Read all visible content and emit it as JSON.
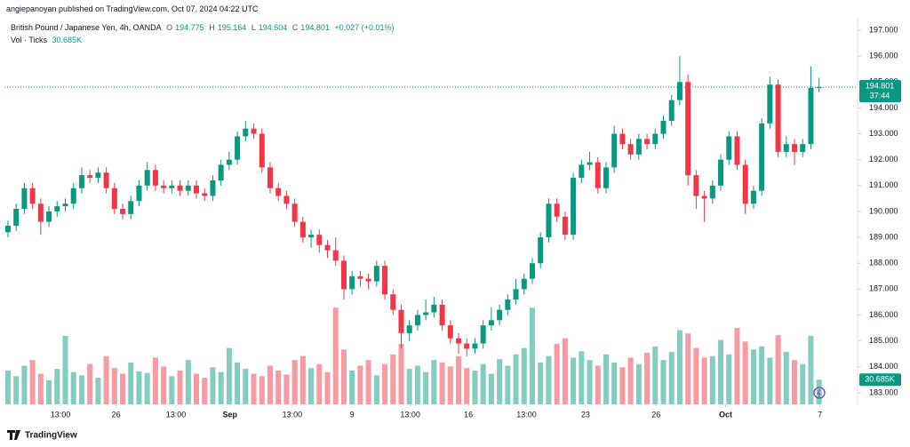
{
  "header": {
    "published": "angiepanoyan published on TradingView.com, Oct 07, 2024 04:22 UTC"
  },
  "chart_data": {
    "type": "candlestick",
    "title": "British Pound / Japanese Yen, 4h, OANDA",
    "ohlc_letters": [
      "O",
      "H",
      "L",
      "C"
    ],
    "change": "+0.027 (+0.01%)",
    "countdown": "37:44",
    "up_color": "#089981",
    "down_color": "#f23645",
    "grid": false,
    "last_price_line": true,
    "open": [
      189.2,
      189.45,
      190.1,
      190.9,
      190.3,
      189.6,
      190.0,
      190.2,
      190.3,
      190.9,
      191.4,
      191.3,
      191.5,
      190.9,
      190.1,
      189.9,
      190.4,
      191.0,
      191.6,
      191.0,
      190.9,
      191.0,
      190.8,
      191.0,
      190.7,
      190.6,
      191.2,
      191.8,
      192.0,
      192.9,
      193.2,
      193.0,
      191.7,
      190.9,
      190.6,
      190.3,
      189.6,
      189.0,
      189.1,
      188.7,
      188.5,
      188.1,
      187.0,
      187.5,
      187.4,
      187.3,
      187.9,
      186.8,
      186.2,
      185.3,
      185.6,
      186.0,
      186.1,
      186.4,
      185.6,
      185.1,
      184.9,
      184.7,
      184.9,
      185.6,
      185.8,
      186.2,
      186.6,
      187.0,
      187.4,
      188.0,
      189.0,
      190.3,
      189.8,
      189.1,
      191.3,
      191.8,
      191.9,
      190.9,
      191.7,
      193.0,
      192.6,
      192.2,
      192.8,
      192.6,
      193.0,
      193.5,
      194.3,
      195.0,
      191.4,
      190.6,
      190.5,
      191.0,
      192.0,
      192.9,
      191.8,
      190.3,
      190.8,
      193.4,
      194.9,
      192.3,
      192.6,
      192.3,
      192.6,
      194.775
    ],
    "high": [
      189.65,
      190.3,
      191.1,
      191.1,
      190.5,
      190.2,
      190.4,
      190.5,
      191.1,
      191.7,
      191.6,
      191.7,
      191.7,
      191.1,
      190.3,
      190.6,
      191.2,
      191.9,
      191.8,
      191.2,
      191.2,
      191.2,
      191.2,
      191.2,
      190.9,
      191.4,
      192.0,
      192.3,
      193.1,
      193.5,
      193.4,
      193.2,
      191.9,
      191.1,
      190.8,
      190.5,
      189.8,
      189.3,
      189.3,
      188.9,
      189.0,
      188.3,
      187.7,
      187.7,
      187.6,
      188.1,
      188.1,
      187.0,
      186.4,
      185.8,
      186.2,
      186.6,
      186.7,
      186.6,
      185.8,
      185.3,
      185.1,
      185.1,
      185.8,
      186.3,
      186.4,
      186.8,
      187.4,
      187.6,
      188.2,
      189.2,
      190.5,
      190.5,
      190.0,
      191.5,
      192.0,
      192.3,
      192.1,
      191.9,
      193.3,
      193.2,
      192.8,
      193.0,
      193.0,
      193.2,
      193.7,
      194.5,
      196.0,
      195.3,
      191.6,
      190.8,
      191.2,
      192.2,
      193.1,
      193.1,
      192.0,
      191.0,
      193.6,
      195.2,
      195.1,
      192.9,
      192.8,
      192.8,
      195.6,
      195.164
    ],
    "low": [
      189.0,
      189.25,
      189.9,
      190.1,
      189.1,
      189.4,
      189.8,
      190.0,
      190.1,
      190.7,
      191.1,
      191.1,
      190.7,
      189.9,
      189.7,
      189.7,
      190.2,
      190.8,
      190.8,
      190.7,
      190.7,
      190.6,
      190.6,
      190.5,
      190.4,
      190.4,
      191.0,
      191.6,
      191.8,
      192.7,
      192.8,
      191.5,
      190.7,
      190.4,
      190.1,
      189.4,
      188.8,
      188.6,
      188.4,
      188.2,
      187.9,
      186.6,
      186.8,
      187.1,
      187.0,
      187.1,
      186.6,
      186.0,
      184.7,
      185.0,
      185.4,
      185.8,
      185.9,
      185.4,
      184.9,
      184.5,
      184.4,
      184.5,
      184.7,
      185.4,
      185.6,
      186.0,
      186.4,
      186.8,
      187.2,
      187.8,
      188.8,
      189.6,
      188.9,
      188.9,
      191.1,
      191.6,
      190.7,
      190.7,
      191.5,
      192.4,
      192.0,
      192.0,
      192.4,
      192.4,
      192.8,
      193.3,
      194.1,
      191.0,
      190.1,
      189.6,
      190.3,
      190.8,
      191.8,
      191.6,
      189.9,
      190.1,
      190.6,
      193.2,
      192.1,
      192.1,
      191.8,
      192.1,
      192.4,
      194.604
    ],
    "close": [
      189.45,
      190.1,
      190.9,
      190.3,
      189.6,
      190.0,
      190.2,
      190.3,
      190.9,
      191.4,
      191.3,
      191.5,
      190.9,
      190.1,
      189.9,
      190.4,
      191.0,
      191.6,
      191.0,
      190.9,
      191.0,
      190.8,
      191.0,
      190.7,
      190.6,
      191.2,
      191.8,
      192.0,
      192.9,
      193.2,
      193.0,
      191.7,
      190.9,
      190.6,
      190.3,
      189.6,
      189.0,
      189.1,
      188.7,
      188.5,
      188.1,
      187.0,
      187.5,
      187.4,
      187.3,
      187.9,
      186.8,
      186.2,
      185.3,
      185.6,
      186.0,
      186.1,
      186.4,
      185.6,
      185.1,
      184.9,
      184.7,
      184.9,
      185.6,
      185.8,
      186.2,
      186.6,
      187.0,
      187.4,
      188.0,
      189.0,
      190.3,
      189.8,
      189.1,
      191.3,
      191.8,
      191.9,
      190.9,
      191.7,
      193.0,
      192.6,
      192.2,
      192.8,
      192.6,
      193.0,
      193.5,
      194.3,
      195.0,
      191.4,
      190.6,
      190.5,
      191.0,
      192.0,
      192.9,
      191.8,
      190.3,
      190.8,
      193.4,
      194.9,
      192.3,
      192.6,
      192.3,
      192.6,
      194.774,
      194.801
    ],
    "volume": {
      "title": "Vol · Ticks",
      "last_label": "30.685K",
      "ylim": [
        0,
        480
      ],
      "values": [
        42,
        35,
        48,
        55,
        38,
        30,
        44,
        85,
        40,
        36,
        50,
        33,
        60,
        45,
        38,
        52,
        41,
        39,
        58,
        47,
        35,
        42,
        55,
        38,
        33,
        46,
        40,
        70,
        52,
        44,
        38,
        35,
        48,
        42,
        37,
        55,
        60,
        45,
        50,
        40,
        120,
        68,
        42,
        48,
        55,
        36,
        50,
        62,
        75,
        44,
        48,
        40,
        55,
        52,
        47,
        60,
        45,
        42,
        50,
        38,
        56,
        48,
        62,
        70,
        120,
        52,
        60,
        75,
        82,
        58,
        66,
        55,
        48,
        62,
        52,
        46,
        58,
        50,
        64,
        72,
        55,
        65,
        92,
        88,
        70,
        58,
        60,
        80,
        62,
        95,
        78,
        68,
        72,
        58,
        86,
        65,
        55,
        50,
        85,
        30.685
      ]
    },
    "xlim": [
      -0.43,
      103.7
    ],
    "xticks": [
      {
        "value": 6.4,
        "label": "13:00"
      },
      {
        "value": 13.2,
        "label": "26"
      },
      {
        "value": 20.5,
        "label": "13:00"
      },
      {
        "value": 27.1,
        "label": "Sep"
      },
      {
        "value": 34.7,
        "label": "13:00"
      },
      {
        "value": 42,
        "label": "9"
      },
      {
        "value": 49.1,
        "label": "13:00"
      },
      {
        "value": 56.2,
        "label": "16"
      },
      {
        "value": 63.3,
        "label": "13:00"
      },
      {
        "value": 70.5,
        "label": "23"
      },
      {
        "value": 79.1,
        "label": "26"
      },
      {
        "value": 87.6,
        "label": "Oct"
      },
      {
        "value": 99.1,
        "label": "7"
      }
    ],
    "ylim": [
      182.55,
      197.48
    ],
    "yticks": [
      {
        "value": 183,
        "label": "183.000"
      },
      {
        "value": 184,
        "label": "184.000"
      },
      {
        "value": 185,
        "label": "185.000"
      },
      {
        "value": 186,
        "label": "186.000"
      },
      {
        "value": 187,
        "label": "187.000"
      },
      {
        "value": 188,
        "label": "188.000"
      },
      {
        "value": 189,
        "label": "189.000"
      },
      {
        "value": 190,
        "label": "190.000"
      },
      {
        "value": 191,
        "label": "191.000"
      },
      {
        "value": 192,
        "label": "192.000"
      },
      {
        "value": 193,
        "label": "193.000"
      },
      {
        "value": 194,
        "label": "194.000"
      },
      {
        "value": 195,
        "label": "195.000"
      },
      {
        "value": 196,
        "label": "196.000"
      },
      {
        "value": 197,
        "label": "197.000"
      }
    ]
  },
  "footer": {
    "brand": "TradingView"
  }
}
